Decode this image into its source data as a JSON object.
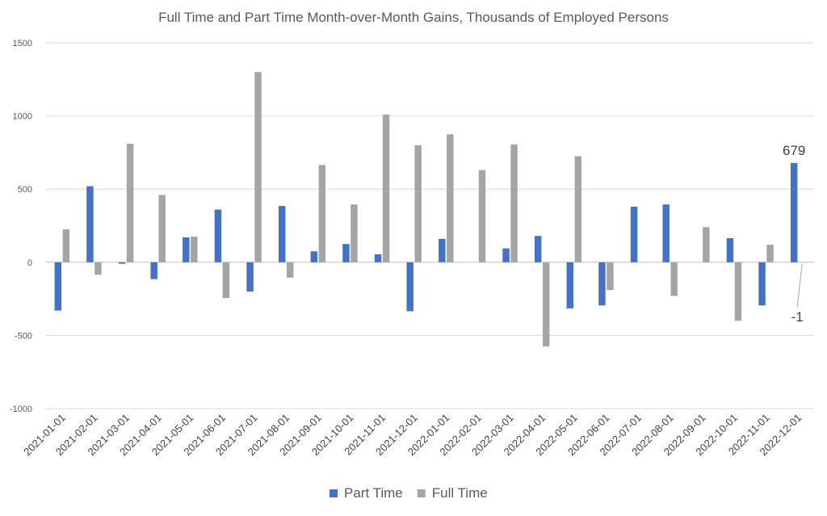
{
  "chart_data": {
    "type": "bar",
    "title": "Full Time and Part Time Month-over-Month Gains, Thousands of Employed Persons",
    "xlabel": "",
    "ylabel": "",
    "ylim": [
      -1000,
      1500
    ],
    "yticks": [
      1500,
      1000,
      500,
      0,
      -500,
      -1000
    ],
    "grid": true,
    "legend_position": "bottom",
    "categories": [
      "2021-01-01",
      "2021-02-01",
      "2021-03-01",
      "2021-04-01",
      "2021-05-01",
      "2021-06-01",
      "2021-07-01",
      "2021-08-01",
      "2021-09-01",
      "2021-10-01",
      "2021-11-01",
      "2021-12-01",
      "2022-01-01",
      "2022-02-01",
      "2022-03-01",
      "2022-04-01",
      "2022-05-01",
      "2022-06-01",
      "2022-07-01",
      "2022-08-01",
      "2022-09-01",
      "2022-10-01",
      "2022-11-01",
      "2022-12-01"
    ],
    "series": [
      {
        "name": "Part Time",
        "color": "#4472c4",
        "values": [
          -330,
          520,
          -10,
          -115,
          170,
          360,
          -200,
          385,
          75,
          125,
          55,
          -335,
          160,
          0,
          95,
          180,
          -315,
          -295,
          380,
          395,
          0,
          165,
          -295,
          679
        ]
      },
      {
        "name": "Full Time",
        "color": "#a5a5a5",
        "values": [
          225,
          -85,
          810,
          460,
          175,
          -245,
          1300,
          -105,
          665,
          395,
          1010,
          800,
          875,
          630,
          805,
          -575,
          725,
          -190,
          0,
          -230,
          240,
          -400,
          120,
          -1
        ]
      }
    ],
    "annotations": [
      {
        "label": "679",
        "series": "Part Time",
        "category": "2022-12-01"
      },
      {
        "label": "-1",
        "series": "Full Time",
        "category": "2022-12-01"
      }
    ]
  }
}
